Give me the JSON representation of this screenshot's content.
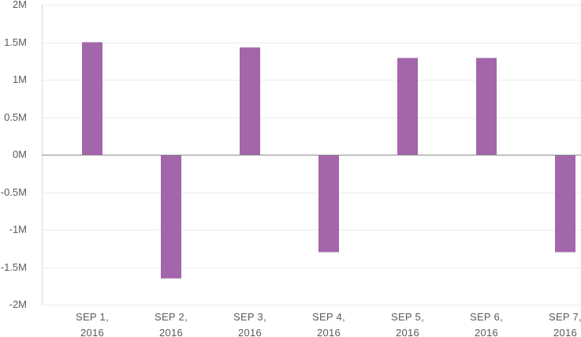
{
  "chart_data": {
    "type": "bar",
    "title": "",
    "xlabel": "",
    "ylabel": "",
    "categories": [
      [
        "SEP 1,",
        "2016"
      ],
      [
        "SEP 2,",
        "2016"
      ],
      [
        "SEP 3,",
        "2016"
      ],
      [
        "SEP 4,",
        "2016"
      ],
      [
        "SEP 5,",
        "2016"
      ],
      [
        "SEP 6,",
        "2016"
      ],
      [
        "SEP 7,",
        "2016"
      ]
    ],
    "values": [
      1500000,
      -1650000,
      1430000,
      -1300000,
      1290000,
      1290000,
      -1300000
    ],
    "ylim": [
      -2000000,
      2000000
    ],
    "yticks": [
      {
        "value": 2000000,
        "label": "2M"
      },
      {
        "value": 1500000,
        "label": "1.5M"
      },
      {
        "value": 1000000,
        "label": "1M"
      },
      {
        "value": 500000,
        "label": "0.5M"
      },
      {
        "value": 0,
        "label": "0M"
      },
      {
        "value": -500000,
        "label": "-0.5M"
      },
      {
        "value": -1000000,
        "label": "-1M"
      },
      {
        "value": -1500000,
        "label": "-1.5M"
      },
      {
        "value": -2000000,
        "label": "-2M"
      }
    ],
    "grid": true,
    "legend": "none",
    "colors": {
      "bar": "#a366aa",
      "grid": "#ececec",
      "zero_line": "#8c8c8c",
      "axis": "#d9d9d9"
    }
  }
}
